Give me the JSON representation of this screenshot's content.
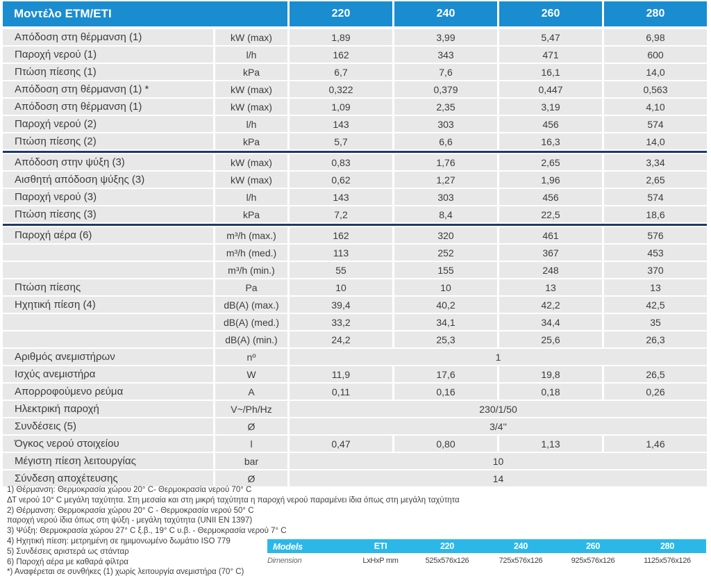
{
  "table": {
    "header": {
      "title": "Μοντέλο ETM/ETI",
      "columns": [
        "220",
        "240",
        "260",
        "280"
      ]
    },
    "rows": [
      {
        "label": "Απόδοση στη θέρμανση (1)",
        "unit": "kW (max)",
        "values": [
          "1,89",
          "3,99",
          "5,47",
          "6,98"
        ]
      },
      {
        "label": "Παροχή νερού (1)",
        "unit": "l/h",
        "values": [
          "162",
          "343",
          "471",
          "600"
        ]
      },
      {
        "label": "Πτώση πίεσης (1)",
        "unit": "kPa",
        "values": [
          "6,7",
          "7,6",
          "16,1",
          "14,0"
        ]
      },
      {
        "label": "Απόδοση στη θέρμανση (1) *",
        "unit": "kW (max)",
        "values": [
          "0,322",
          "0,379",
          "0,447",
          "0,563"
        ]
      },
      {
        "label": "Απόδοση στη θέρμανση (1)",
        "unit": "kW (max)",
        "values": [
          "1,09",
          "2,35",
          "3,19",
          "4,10"
        ]
      },
      {
        "label": "Παροχή νερού (2)",
        "unit": "l/h",
        "values": [
          "143",
          "303",
          "456",
          "574"
        ]
      },
      {
        "label": "Πτώση πίεσης (2)",
        "unit": "kPa",
        "values": [
          "5,7",
          "6,6",
          "16,3",
          "14,0"
        ]
      },
      {
        "divider": true
      },
      {
        "label": "Απόδοση στην ψύξη (3)",
        "unit": "kW (max)",
        "values": [
          "0,83",
          "1,76",
          "2,65",
          "3,34"
        ]
      },
      {
        "label": "Αισθητή απόδοση ψύξης (3)",
        "unit": "kW (max)",
        "values": [
          "0,62",
          "1,27",
          "1,96",
          "2,65"
        ]
      },
      {
        "label": "Παροχή νερού (3)",
        "unit": "l/h",
        "values": [
          "143",
          "303",
          "456",
          "574"
        ]
      },
      {
        "label": "Πτώση πίεσης (3)",
        "unit": "kPa",
        "values": [
          "7,2",
          "8,4",
          "22,5",
          "18,6"
        ]
      },
      {
        "divider": true
      },
      {
        "label": "Παροχή αέρα (6)",
        "unit": "m³/h (max.)",
        "values": [
          "162",
          "320",
          "461",
          "576"
        ]
      },
      {
        "label": "",
        "unit": "m³/h (med.)",
        "values": [
          "113",
          "252",
          "367",
          "453"
        ]
      },
      {
        "label": "",
        "unit": "m³/h (min.)",
        "values": [
          "55",
          "155",
          "248",
          "370"
        ]
      },
      {
        "label": "Πτώση πίεσης",
        "unit": "Pa",
        "values": [
          "10",
          "10",
          "13",
          "13"
        ]
      },
      {
        "label": "Ηχητική πίεση (4)",
        "unit": "dB(A) (max.)",
        "values": [
          "39,4",
          "40,2",
          "42,2",
          "42,5"
        ]
      },
      {
        "label": "",
        "unit": "dB(A) (med.)",
        "values": [
          "33,2",
          "34,1",
          "34,4",
          "35"
        ]
      },
      {
        "label": "",
        "unit": "dB(A) (min.)",
        "values": [
          "24,2",
          "25,3",
          "25,6",
          "26,3"
        ]
      },
      {
        "label": "Αριθμός ανεμιστήρων",
        "unit": "nº",
        "merged": "1"
      },
      {
        "label": "Ισχύς ανεμιστήρα",
        "unit": "W",
        "values": [
          "11,9",
          "17,6",
          "19,8",
          "26,5"
        ]
      },
      {
        "label": "Απορροφούμενο ρεύμα",
        "unit": "A",
        "values": [
          "0,11",
          "0,16",
          "0,18",
          "0,26"
        ]
      },
      {
        "label": "Ηλεκτρική παροχή",
        "unit": "V~/Ph/Hz",
        "merged": "230/1/50"
      },
      {
        "label": "Συνδέσεις (5)",
        "unit": "Ø",
        "merged": "3/4''"
      },
      {
        "label": "Όγκος νερού στοιχείου",
        "unit": "l",
        "values": [
          "0,47",
          "0,80",
          "1,13",
          "1,46"
        ]
      },
      {
        "label": "Μέγιστη πίεση λειτουργίας",
        "unit": "bar",
        "merged": "10"
      },
      {
        "label": "Σύνδεση αποχέτευσης",
        "unit": "Ø",
        "merged": "14"
      }
    ]
  },
  "footnotes": [
    "1) Θέρμανση: Θερμοκρασία χώρου 20° C- Θερμοκρασία νερού 70° C",
    "ΔΤ νερού 10° C μεγάλη ταχύτητα. Στη μεσαία και στη μικρή ταχύτητα η παροχή νερού παραμένει ίδια όπως στη μεγάλη ταχύτητα",
    "2) Θέρμανση: Θερμοκρασία χώρου 20° C - Θερμοκρασία νερού 50° C",
    "παροχή νερού ίδια όπως στη ψύξη - μεγάλη ταχύτητα (UNII EN 1397)",
    "3) Ψύξη: Θερμοκρασία χώρου 27° C ξ.β., 19° C υ.β. - Θερμοκρασία νερού 7° C",
    "4) Ηχητική πίεση: μετρημένη σε ημιμονωμένο δωμάτιο ISO 779",
    "5) Συνδέσεις αριστερά ως στάνταρ",
    "6) Παροχή αέρα με καθαρά φίλτρα",
    "*) Αναφέρεται σε συνθήκες (1) χωρίς λειτουργία ανεμιστήρα (70° C)"
  ],
  "mini_table": {
    "header": [
      "Models",
      "ETI",
      "220",
      "240",
      "260",
      "280"
    ],
    "row": [
      "Dimension",
      "LxHxP mm",
      "525x576x126",
      "725x576x126",
      "925x576x126",
      "1125x576x126"
    ]
  },
  "colors": {
    "header_blue": "#1a8cd0",
    "row_gray": "#e8e8e8",
    "divider_navy": "#1e3a68",
    "mini_cyan": "#2bb8e8"
  }
}
